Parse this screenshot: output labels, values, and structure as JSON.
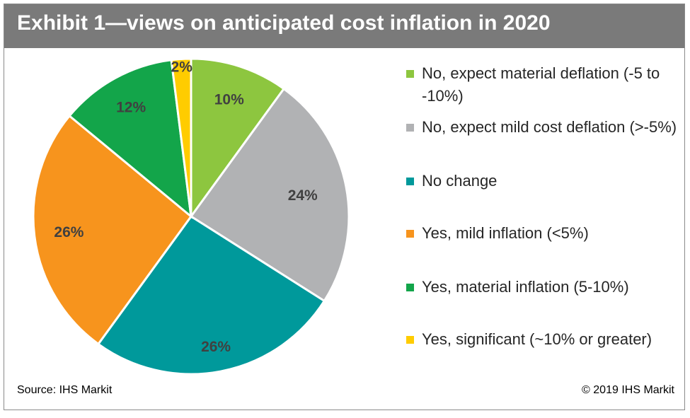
{
  "title": "Exhibit 1—views on anticipated cost inflation in 2020",
  "source": "Source: IHS Markit",
  "copyright": "© 2019 IHS Markit",
  "chart_data": {
    "type": "pie",
    "title": "Exhibit 1—views on anticipated cost inflation in 2020",
    "legend_position": "right",
    "slices": [
      {
        "label": "No, expect material deflation (-5 to -10%)",
        "value": 10,
        "display": "10%",
        "color": "#8dc63f"
      },
      {
        "label": "No, expect mild cost deflation (>-5%)",
        "value": 24,
        "display": "24%",
        "color": "#b1b2b4"
      },
      {
        "label": "No change",
        "value": 26,
        "display": "26%",
        "color": "#00999b"
      },
      {
        "label": "Yes, mild inflation (<5%)",
        "value": 26,
        "display": "26%",
        "color": "#f7941d"
      },
      {
        "label": "Yes, material inflation (5-10%)",
        "value": 12,
        "display": "12%",
        "color": "#13a54a"
      },
      {
        "label": "Yes, significant (~10% or greater)",
        "value": 2,
        "display": "2%",
        "color": "#ffcc00"
      }
    ]
  }
}
